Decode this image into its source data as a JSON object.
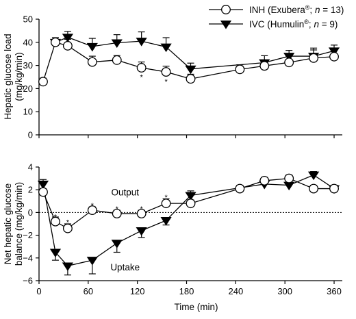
{
  "chart_data": [
    {
      "type": "line",
      "ylabel_lines": [
        "Hepatic glucose load",
        "(mg/kg/min)"
      ],
      "xlim": [
        0,
        370
      ],
      "ylim": [
        0,
        50
      ],
      "yticks": [
        0,
        10,
        20,
        30,
        40,
        50
      ],
      "ytick_labels": [
        "0",
        "10",
        "20",
        "30",
        "40",
        "50"
      ],
      "legend": {
        "position": "top-right",
        "entries": [
          {
            "series": "inh",
            "parts": [
              "INH (Exubera",
              "®",
              "; ",
              "n",
              " = 13)"
            ]
          },
          {
            "series": "ivc",
            "parts": [
              "IVC (Humulin",
              "®",
              "; ",
              "n",
              " = 9)"
            ]
          }
        ]
      },
      "series": [
        {
          "key": "inh",
          "marker": "open-circle",
          "x": [
            5,
            20,
            35,
            65,
            95,
            125,
            155,
            185,
            245,
            275,
            305,
            335,
            360
          ],
          "y": [
            23,
            40,
            38.5,
            31.5,
            32.3,
            29,
            27.2,
            24.2,
            28.3,
            29.8,
            31.3,
            33.2,
            33.8
          ],
          "err_up": [
            1.5,
            2,
            2.8,
            2.5,
            2,
            2.5,
            2.5,
            2,
            2,
            2.5,
            3,
            3.5,
            3.5
          ],
          "err_down": [
            1.5,
            2,
            2.8,
            2.5,
            2,
            2.5,
            2.5,
            2,
            2,
            2.5,
            3,
            3.5,
            3.5
          ]
        },
        {
          "key": "ivc",
          "marker": "filled-triangle-down",
          "x": [
            20,
            35,
            65,
            95,
            125,
            155,
            185,
            275,
            305,
            335,
            360
          ],
          "y": [
            40,
            42.2,
            38.2,
            39.8,
            40.5,
            38,
            28.5,
            31.2,
            34,
            34,
            36.3
          ],
          "err_up": [
            2,
            2.5,
            3.5,
            3.5,
            4,
            4,
            2.5,
            3,
            2.5,
            3.5,
            2.5
          ],
          "err_down": [
            2,
            2.5,
            3.5,
            3.5,
            4,
            4,
            2.5,
            3,
            2.5,
            3.5,
            2.5
          ]
        }
      ],
      "annotations": [
        {
          "text": "*",
          "x": 125,
          "y": 25.3
        },
        {
          "text": "*",
          "x": 155,
          "y": 23.4
        }
      ]
    },
    {
      "type": "line",
      "xlabel": "Time (min)",
      "ylabel_lines": [
        "Net hepatic glucose",
        "balance (mg/kg/min)"
      ],
      "xlim": [
        0,
        370
      ],
      "ylim": [
        -6,
        4
      ],
      "xticks": [
        0,
        60,
        120,
        180,
        240,
        300,
        360
      ],
      "xtick_labels": [
        "0",
        "60",
        "120",
        "180",
        "240",
        "300",
        "360"
      ],
      "yticks": [
        -6,
        -4,
        -2,
        0,
        2,
        4
      ],
      "ytick_labels": [
        "−6",
        "−4",
        "−2",
        "0",
        "2",
        "4"
      ],
      "reference_line": {
        "y": 0,
        "style": "dotted"
      },
      "series": [
        {
          "key": "inh",
          "marker": "open-circle",
          "x": [
            5,
            20,
            35,
            65,
            95,
            125,
            155,
            185,
            245,
            275,
            305,
            335,
            360
          ],
          "y": [
            1.8,
            -0.8,
            -1.4,
            0.2,
            -0.1,
            -0.1,
            0.8,
            0.8,
            2.1,
            2.8,
            3,
            2.1,
            2.1
          ],
          "err_up": [
            0.3,
            0.4,
            0.4,
            0.3,
            0.3,
            0.3,
            0.4,
            0.3,
            0.3,
            0.3,
            0.3,
            0.3,
            0.3
          ],
          "err_down": [
            0.3,
            0.4,
            0.4,
            0.3,
            0.3,
            0.3,
            0.4,
            0.3,
            0.3,
            0.3,
            0.3,
            0.3,
            0.3
          ]
        },
        {
          "key": "ivc",
          "marker": "filled-triangle-down",
          "x": [
            5,
            20,
            35,
            65,
            95,
            125,
            155,
            185,
            275,
            305,
            335,
            360
          ],
          "y": [
            2.5,
            -3.5,
            -4.7,
            -4.2,
            -2.7,
            -1.6,
            -0.7,
            1.5,
            2.5,
            2.4,
            3.3,
            2.1
          ],
          "err_up": [
            0.4,
            0.7,
            0.8,
            1.2,
            0.8,
            0.6,
            0.4,
            0.4,
            0.4,
            0.5,
            0.3,
            0.3
          ],
          "err_down": [
            0.4,
            0.7,
            0.8,
            1.2,
            0.8,
            0.6,
            0.4,
            0.4,
            0.4,
            0.5,
            0.3,
            0.3
          ]
        }
      ],
      "annotations": [
        {
          "text": "*",
          "x": 20,
          "y": -0.3
        },
        {
          "text": "*",
          "x": 35,
          "y": -0.8
        },
        {
          "text": "*",
          "x": 65,
          "y": 0.7
        },
        {
          "text": "*",
          "x": 95,
          "y": 0.4
        },
        {
          "text": "*",
          "x": 125,
          "y": 0.4
        },
        {
          "text": "*",
          "x": 155,
          "y": 1.4
        }
      ],
      "labels": [
        {
          "text": "Output",
          "x": 105,
          "y": 1.8
        },
        {
          "text": "Uptake",
          "x": 105,
          "y": -4.8
        }
      ]
    }
  ]
}
